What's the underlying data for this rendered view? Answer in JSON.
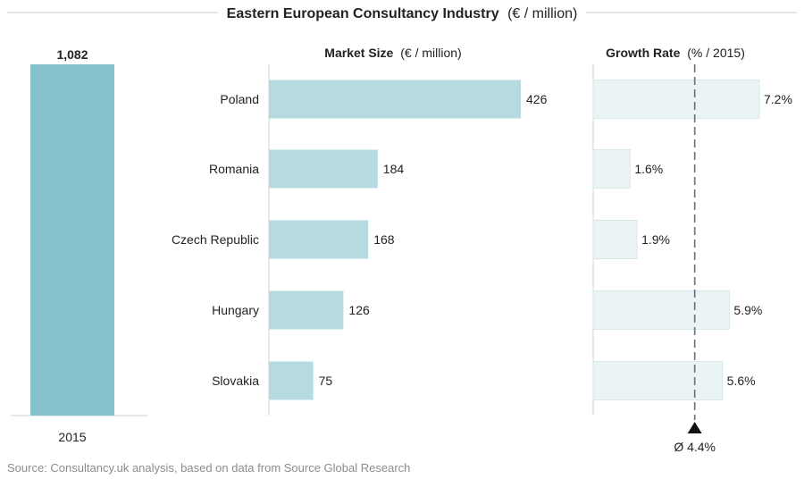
{
  "title": {
    "bold": "Eastern European Consultancy Industry",
    "rest": "(€ / million)"
  },
  "source": "Source: Consultancy.uk analysis, based on data from Source Global Research",
  "colors": {
    "total_bar": "#86c2cb",
    "market_bar": "#b5dbe1",
    "growth_bar": "#ebf4f5",
    "growth_bar_stroke": "#d7e7ea",
    "axis": "#d0d0d0",
    "avg_line": "#5f7580"
  },
  "chart_data": [
    {
      "type": "bar",
      "categories": [
        "2015"
      ],
      "values": [
        1082
      ],
      "value_labels": [
        "1,082"
      ]
    },
    {
      "type": "bar",
      "orientation": "horizontal",
      "title_bold": "Market Size",
      "title_rest": "(€ / million)",
      "categories": [
        "Poland",
        "Romania",
        "Czech Republic",
        "Hungary",
        "Slovakia"
      ],
      "values": [
        426,
        184,
        168,
        126,
        75
      ]
    },
    {
      "type": "bar",
      "orientation": "horizontal",
      "title_bold": "Growth Rate",
      "title_rest": "(% / 2015)",
      "categories": [
        "Poland",
        "Romania",
        "Czech Republic",
        "Hungary",
        "Slovakia"
      ],
      "values": [
        7.2,
        1.6,
        1.9,
        5.9,
        5.6
      ],
      "value_labels": [
        "7.2%",
        "1.6%",
        "1.9%",
        "5.9%",
        "5.6%"
      ],
      "average": 4.4,
      "average_label": "Ø 4.4%"
    }
  ]
}
